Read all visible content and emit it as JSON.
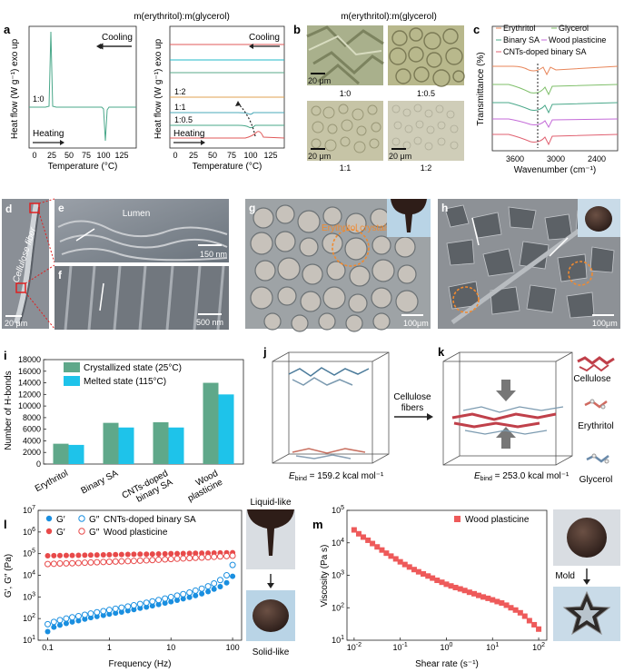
{
  "panel_letters": {
    "a": "a",
    "b": "b",
    "c": "c",
    "d": "d",
    "e": "e",
    "f": "f",
    "g": "g",
    "h": "h",
    "i": "i",
    "j": "j",
    "k": "k",
    "l": "l",
    "m": "m"
  },
  "panel_a": {
    "header": "m(erythritol):m(glycerol)",
    "ylabel": "Heat flow (W g⁻¹) exo up",
    "xlabel": "Temperature (°C)",
    "xticks": [
      "0",
      "25",
      "50",
      "75",
      "100",
      "125"
    ],
    "cooling": "Cooling",
    "heating": "Heating",
    "labels_left": [
      "1:0"
    ],
    "labels_right": [
      "1:2",
      "1:1",
      "1:0.5"
    ]
  },
  "panel_b": {
    "header": "m(erythritol):m(glycerol)",
    "images": [
      {
        "scale": "20 μm",
        "label": "1:0"
      },
      {
        "scale": "",
        "label": "1:0.5"
      },
      {
        "scale": "20 μm",
        "label": "1:1"
      },
      {
        "scale": "20 μm",
        "label": "1:2"
      }
    ]
  },
  "panel_c": {
    "ylabel": "Transmittance (%)",
    "xlabel": "Wavenumber (cm⁻¹)",
    "xticks": [
      "3600",
      "3000",
      "2400"
    ],
    "legend": [
      "Erythritol",
      "Glycerol",
      "Binary SA",
      "Wood plasticine",
      "CNTs-doped binary SA"
    ],
    "colors": [
      "#e8865a",
      "#7fbf6a",
      "#4aa88a",
      "#c46bd8",
      "#e06070"
    ]
  },
  "panel_d": {
    "fiber": "Cellulose fiber",
    "scale": "20 μm"
  },
  "panel_e": {
    "lumen": "Lumen",
    "scale": "150 nm"
  },
  "panel_f": {
    "scale": "500 nm"
  },
  "panel_g": {
    "label": "Erythritol crystals",
    "scale": "100μm"
  },
  "panel_h": {
    "scale": "100μm"
  },
  "panel_i": {
    "ylabel": "Number of H-bonds",
    "legend": [
      "Crystallized state (25°C)",
      "Melted state (115°C)"
    ],
    "yticks": [
      "0",
      "2000",
      "4000",
      "6000",
      "8000",
      "10000",
      "12000",
      "14000",
      "16000",
      "18000"
    ],
    "categories": [
      "Erythritol",
      "Binary SA",
      "CNTs-doped binary SA",
      "Wood plasticine"
    ],
    "cat_lines": [
      [
        "Erythritol"
      ],
      [
        "Binary SA"
      ],
      [
        "CNTs-doped",
        "binary SA"
      ],
      [
        "Wood",
        "plasticine"
      ]
    ]
  },
  "panel_j": {
    "ebind": "E",
    "sub": "bind",
    "value": " = 159.2 kcal mol⁻¹"
  },
  "panel_jk_arrow": [
    "Cellulose",
    "fibers"
  ],
  "panel_k": {
    "ebind": "E",
    "sub": "bind",
    "value": " = 253.0 kcal mol⁻¹",
    "legend": [
      "Cellulose",
      "Erythritol",
      "Glycerol"
    ]
  },
  "panel_l": {
    "ylabel": "G′, G″ (Pa)",
    "xlabel": "Frequency (Hz)",
    "legend_row1": [
      "G′",
      "G″",
      "CNTs-doped binary SA"
    ],
    "legend_row2": [
      "G′",
      "G″",
      "Wood plasticine"
    ],
    "photo_top": "Liquid-like",
    "photo_bottom": "Solid-like"
  },
  "panel_m": {
    "ylabel": "Viscosity (Pa s)",
    "xlabel": "Shear rate (s⁻¹)",
    "legend": "Wood plasticine",
    "mold": "Mold"
  },
  "chart_data": [
    {
      "type": "bar",
      "panel": "i",
      "categories": [
        "Erythritol",
        "Binary SA",
        "CNTs-doped binary SA",
        "Wood plasticine"
      ],
      "series": [
        {
          "name": "Crystallized state (25°C)",
          "values": [
            3500,
            7100,
            7200,
            14000
          ],
          "color": "#5fa88a"
        },
        {
          "name": "Melted state (115°C)",
          "values": [
            3300,
            6300,
            6300,
            12000
          ],
          "color": "#1ec3ea"
        }
      ],
      "ylabel": "Number of H-bonds",
      "ylim": [
        0,
        18000
      ]
    },
    {
      "type": "scatter",
      "panel": "l",
      "xscale": "log",
      "yscale": "log",
      "xlim": [
        0.07,
        140
      ],
      "ylim": [
        10,
        10000000
      ],
      "xlabel": "Frequency (Hz)",
      "ylabel": "G′, G″ (Pa)",
      "series": [
        {
          "name": "G′ CNTs-doped binary SA",
          "marker": "filled",
          "color": "#1a8fe0",
          "x": [
            0.1,
            0.126,
            0.158,
            0.2,
            0.25,
            0.316,
            0.4,
            0.5,
            0.63,
            0.8,
            1,
            1.26,
            1.58,
            2,
            2.5,
            3.16,
            4,
            5,
            6.3,
            8,
            10,
            12.6,
            15.8,
            20,
            25,
            31.6,
            40,
            50,
            63,
            80,
            100
          ],
          "y": [
            25,
            40,
            50,
            60,
            70,
            80,
            95,
            110,
            125,
            140,
            160,
            180,
            200,
            230,
            260,
            300,
            340,
            390,
            450,
            520,
            600,
            700,
            820,
            960,
            1150,
            1400,
            1750,
            2300,
            3000,
            4500,
            9000
          ]
        },
        {
          "name": "G″ CNTs-doped binary SA",
          "marker": "open",
          "color": "#1a8fe0",
          "x": [
            0.1,
            0.126,
            0.158,
            0.2,
            0.25,
            0.316,
            0.4,
            0.5,
            0.63,
            0.8,
            1,
            1.26,
            1.58,
            2,
            2.5,
            3.16,
            4,
            5,
            6.3,
            8,
            10,
            12.6,
            15.8,
            20,
            25,
            31.6,
            40,
            50,
            63,
            80,
            100
          ],
          "y": [
            55,
            70,
            85,
            100,
            115,
            130,
            150,
            170,
            195,
            220,
            250,
            285,
            320,
            360,
            410,
            470,
            540,
            620,
            720,
            840,
            980,
            1150,
            1350,
            1600,
            1950,
            2400,
            3100,
            4200,
            6000,
            10000,
            30000
          ]
        },
        {
          "name": "G′ Wood plasticine",
          "marker": "filled",
          "color": "#e84a4a",
          "x": [
            0.1,
            0.126,
            0.158,
            0.2,
            0.25,
            0.316,
            0.4,
            0.5,
            0.63,
            0.8,
            1,
            1.26,
            1.58,
            2,
            2.5,
            3.16,
            4,
            5,
            6.3,
            8,
            10,
            12.6,
            15.8,
            20,
            25,
            31.6,
            40,
            50,
            63,
            80,
            100
          ],
          "y": [
            80000,
            81000,
            82000,
            82500,
            83000,
            84000,
            85000,
            86000,
            87000,
            88000,
            89000,
            90000,
            91000,
            92000,
            93000,
            94000,
            95000,
            96000,
            97000,
            98500,
            100000,
            101000,
            102000,
            103000,
            104000,
            105000,
            106000,
            107000,
            108000,
            109000,
            110000
          ]
        },
        {
          "name": "G″ Wood plasticine",
          "marker": "open",
          "color": "#e84a4a",
          "x": [
            0.1,
            0.126,
            0.158,
            0.2,
            0.25,
            0.316,
            0.4,
            0.5,
            0.63,
            0.8,
            1,
            1.26,
            1.58,
            2,
            2.5,
            3.16,
            4,
            5,
            6.3,
            8,
            10,
            12.6,
            15.8,
            20,
            25,
            31.6,
            40,
            50,
            63,
            80,
            100
          ],
          "y": [
            33000,
            34000,
            35000,
            35500,
            36000,
            37000,
            38000,
            39000,
            40000,
            41000,
            42000,
            43000,
            44000,
            45000,
            46000,
            47500,
            49000,
            50500,
            52000,
            54000,
            56000,
            58000,
            60000,
            62000,
            64000,
            66000,
            68000,
            71000,
            74000,
            77000,
            80000
          ]
        }
      ]
    },
    {
      "type": "scatter",
      "panel": "m",
      "xscale": "log",
      "yscale": "log",
      "xlim": [
        0.007,
        150
      ],
      "ylim": [
        10,
        100000
      ],
      "xlabel": "Shear rate (s⁻¹)",
      "ylabel": "Viscosity (Pa s)",
      "series": [
        {
          "name": "Wood plasticine",
          "marker": "square",
          "color": "#ee5a5a",
          "x": [
            0.01,
            0.0126,
            0.0158,
            0.02,
            0.025,
            0.0316,
            0.04,
            0.05,
            0.063,
            0.08,
            0.1,
            0.126,
            0.158,
            0.2,
            0.25,
            0.316,
            0.4,
            0.5,
            0.63,
            0.8,
            1,
            1.26,
            1.58,
            2,
            2.5,
            3.16,
            4,
            5,
            6.3,
            8,
            10,
            12.6,
            15.8,
            20,
            25,
            31.6,
            40,
            50,
            63,
            80,
            100
          ],
          "y": [
            25000,
            19000,
            15000,
            12000,
            9500,
            7500,
            6000,
            4800,
            3900,
            3200,
            2600,
            2150,
            1800,
            1500,
            1280,
            1100,
            950,
            820,
            700,
            610,
            530,
            470,
            420,
            380,
            340,
            300,
            270,
            240,
            215,
            195,
            175,
            155,
            140,
            120,
            100,
            85,
            70,
            55,
            40,
            30,
            22
          ]
        }
      ]
    }
  ]
}
